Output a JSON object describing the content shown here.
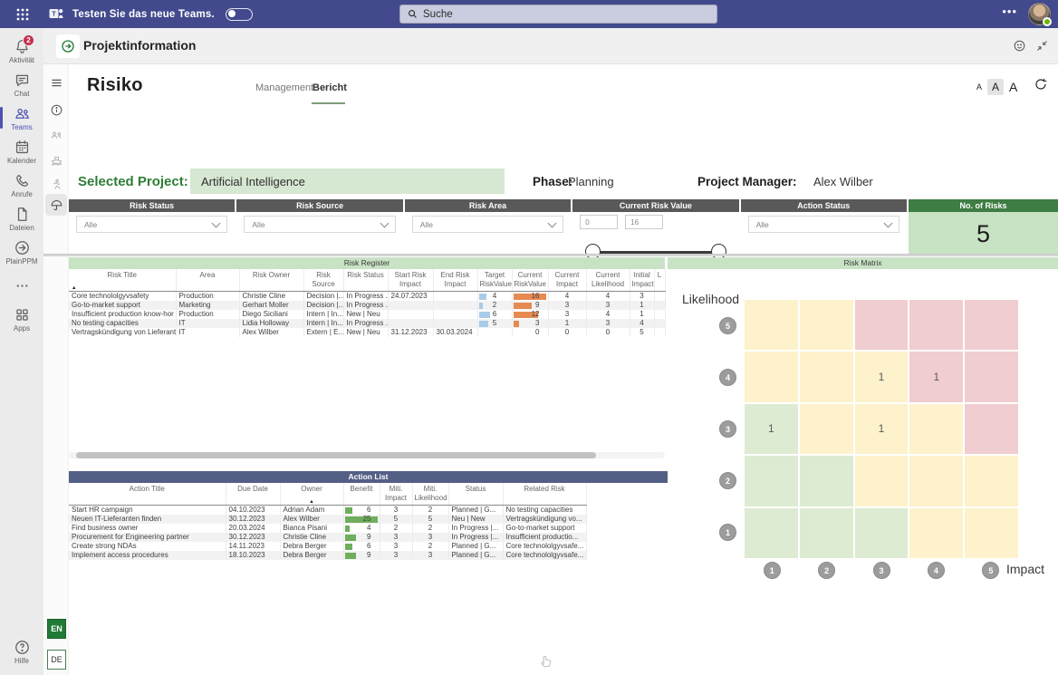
{
  "teams_bar": {
    "banner": "Testen Sie das neue Teams.",
    "search_placeholder": "Suche"
  },
  "app_rail": {
    "items": [
      {
        "id": "activity",
        "icon": "bell",
        "label": "Aktivität",
        "badge": "2"
      },
      {
        "id": "chat",
        "icon": "chat",
        "label": "Chat"
      },
      {
        "id": "teams",
        "icon": "teams",
        "label": "Teams",
        "active": true
      },
      {
        "id": "calendar",
        "icon": "calendar",
        "label": "Kalender"
      },
      {
        "id": "calls",
        "icon": "phone",
        "label": "Anrufe"
      },
      {
        "id": "files",
        "icon": "file",
        "label": "Dateien"
      },
      {
        "id": "plainppm",
        "icon": "plainppm",
        "label": "PlainPPM"
      },
      {
        "id": "more",
        "icon": "dots",
        "label": ""
      },
      {
        "id": "apps",
        "icon": "apps",
        "label": "Apps"
      }
    ],
    "help_label": "Hilfe"
  },
  "tab_header": {
    "title": "Projektinformation"
  },
  "report": {
    "title": "Risiko",
    "tabs": [
      {
        "label": "Management"
      },
      {
        "label": "Bericht",
        "active": true
      }
    ],
    "font_controls": [
      "A",
      "A",
      "A"
    ],
    "project": {
      "label": "Selected Project:",
      "value": "Artificial Intelligence",
      "phase_label": "Phase:",
      "phase_value": "Planning",
      "pm_label": "Project Manager:",
      "pm_value": "Alex Wilber"
    },
    "filters": [
      {
        "id": "risk-status",
        "title": "Risk Status",
        "type": "dropdown",
        "value": "Alle"
      },
      {
        "id": "risk-source",
        "title": "Risk Source",
        "type": "dropdown",
        "value": "Alle"
      },
      {
        "id": "risk-area",
        "title": "Risk Area",
        "type": "dropdown",
        "value": "Alle"
      },
      {
        "id": "current-risk-value",
        "title": "Current Risk Value",
        "type": "range",
        "min": "0",
        "max": "16"
      },
      {
        "id": "action-status",
        "title": "Action Status",
        "type": "dropdown",
        "value": "Alle"
      },
      {
        "id": "no-of-risks",
        "title": "No. of Risks",
        "type": "kpi",
        "value": "5"
      }
    ],
    "risk_register": {
      "title": "Risk Register",
      "columns": [
        {
          "key": "title",
          "label": "Risk Title",
          "sorted": true
        },
        {
          "key": "area",
          "label": "Area"
        },
        {
          "key": "owner",
          "label": "Risk Owner"
        },
        {
          "key": "source",
          "label": "Risk Source"
        },
        {
          "key": "status",
          "label": "Risk Status"
        },
        {
          "key": "start",
          "label": "Start Risk Impact"
        },
        {
          "key": "end",
          "label": "End Risk Impact"
        },
        {
          "key": "target",
          "label": "Target RiskValue"
        },
        {
          "key": "current",
          "label": "Current RiskValue"
        },
        {
          "key": "cur_impact",
          "label": "Current Impact"
        },
        {
          "key": "cur_likelihood",
          "label": "Current Likelihood"
        },
        {
          "key": "init_impact",
          "label": "Initial Impact"
        },
        {
          "key": "l",
          "label": "L"
        }
      ],
      "rows": [
        {
          "title": "Core technololgyvsafety",
          "area": "Production",
          "owner": "Christie Cline",
          "source": "Decision |...",
          "status": "In Progress ...",
          "start": "24.07.2023",
          "end": "",
          "target": "4",
          "current": "16",
          "cur_impact": "4",
          "cur_likelihood": "4",
          "init_impact": "3",
          "l": ""
        },
        {
          "title": "Go-to-market support",
          "area": "Marketing",
          "owner": "Gerhart Moller",
          "source": "Decision |...",
          "status": "In Progress ...",
          "start": "",
          "end": "",
          "target": "2",
          "current": "9",
          "cur_impact": "3",
          "cur_likelihood": "3",
          "init_impact": "1",
          "l": ""
        },
        {
          "title": "Insufficient production know-hor",
          "area": "Production",
          "owner": "Diego Siciliani",
          "source": "Intern | In...",
          "status": "New | Neu",
          "start": "",
          "end": "",
          "target": "6",
          "current": "12",
          "cur_impact": "3",
          "cur_likelihood": "4",
          "init_impact": "1",
          "l": ""
        },
        {
          "title": "No testing capacities",
          "area": "IT",
          "owner": "Lidia Holloway",
          "source": "Intern | In...",
          "status": "In Progress ...",
          "start": "",
          "end": "",
          "target": "5",
          "current": "3",
          "cur_impact": "1",
          "cur_likelihood": "3",
          "init_impact": "4",
          "l": ""
        },
        {
          "title": "Vertragskündigung von Lieferant...",
          "area": "IT",
          "owner": "Alex Wilber",
          "source": "Extern | E...",
          "status": "New | Neu",
          "start": "31.12.2023",
          "end": "30.03.2024",
          "target": "",
          "current": "0",
          "cur_impact": "0",
          "cur_likelihood": "0",
          "init_impact": "5",
          "l": ""
        }
      ]
    },
    "action_list": {
      "title": "Action List",
      "columns": [
        {
          "key": "title",
          "label": "Action Title"
        },
        {
          "key": "due",
          "label": "Due Date"
        },
        {
          "key": "owner",
          "label": "Owner",
          "sorted": true
        },
        {
          "key": "benefit",
          "label": "Benefit"
        },
        {
          "key": "mi",
          "label": "Miti. Impact"
        },
        {
          "key": "ml",
          "label": "Miti. Likelihood"
        },
        {
          "key": "status",
          "label": "Status"
        },
        {
          "key": "related",
          "label": "Related Risk"
        }
      ],
      "rows": [
        {
          "title": "Start HR campaign",
          "due": "04.10.2023",
          "owner": "Adrian Adam",
          "benefit": "6",
          "mi": "3",
          "ml": "2",
          "status": "Planned | G...",
          "related": "No testing capacities"
        },
        {
          "title": "Neuen IT-Lieferanten finden",
          "due": "30.12.2023",
          "owner": "Alex Wilber",
          "benefit": "25",
          "mi": "5",
          "ml": "5",
          "status": "Neu | New",
          "related": "Vertragskündigung vo..."
        },
        {
          "title": "Find business owner",
          "due": "20.03.2024",
          "owner": "Bianca Pisani",
          "benefit": "4",
          "mi": "2",
          "ml": "2",
          "status": "In Progress |...",
          "related": "Go-to-market support"
        },
        {
          "title": "Procurement for Engineering partner",
          "due": "30.12.2023",
          "owner": "Christie Cline",
          "benefit": "9",
          "mi": "3",
          "ml": "3",
          "status": "In Progress |...",
          "related": "Insufficient productio..."
        },
        {
          "title": "Create strong NDAs",
          "due": "14.11.2023",
          "owner": "Debra Berger",
          "benefit": "6",
          "mi": "3",
          "ml": "2",
          "status": "Planned | G...",
          "related": "Core technololgyvsafe..."
        },
        {
          "title": "Implement access procedures",
          "due": "18.10.2023",
          "owner": "Debra Berger",
          "benefit": "9",
          "mi": "3",
          "ml": "3",
          "status": "Planned | G...",
          "related": "Core technololgyvsafe..."
        }
      ]
    },
    "risk_matrix": {
      "title": "Risk Matrix",
      "type": "heatmap",
      "ylabel": "Likelihood",
      "xlabel": "Impact",
      "y_ticks": [
        "5",
        "4",
        "3",
        "2",
        "1"
      ],
      "x_ticks": [
        "1",
        "2",
        "3",
        "4",
        "5"
      ],
      "zones": [
        [
          "y",
          "y",
          "r",
          "r",
          "r"
        ],
        [
          "y",
          "y",
          "y",
          "r",
          "r"
        ],
        [
          "g",
          "y",
          "y",
          "y",
          "r"
        ],
        [
          "g",
          "g",
          "y",
          "y",
          "y"
        ],
        [
          "g",
          "g",
          "g",
          "y",
          "y"
        ]
      ],
      "zone_colors": {
        "g": "#dcebd1",
        "y": "#fdf2cb",
        "r": "#f0cdd0"
      },
      "counts": [
        {
          "likelihood": 4,
          "impact": 3,
          "value": 1
        },
        {
          "likelihood": 4,
          "impact": 4,
          "value": 1
        },
        {
          "likelihood": 3,
          "impact": 1,
          "value": 1
        },
        {
          "likelihood": 3,
          "impact": 3,
          "value": 1
        }
      ]
    }
  },
  "language": {
    "en": "EN",
    "de": "DE"
  },
  "colors": {
    "teams_purple": "#424a8d",
    "badge_red": "#c4314b",
    "accent_green": "#217a36",
    "project_input_green": "#d6e7d2",
    "panel_header_green": "#c8e2c4",
    "kpi_header_green": "#3e7d43",
    "filter_header_gray": "#595959",
    "action_header_blue": "#545f85",
    "bar_orange": "#e68a52",
    "bar_blue": "#a9cbe9",
    "bar_green": "#6fae5c",
    "matrix_green": "#dcebd1",
    "matrix_yellow": "#fdf2cb",
    "matrix_red": "#f0cdd0"
  }
}
